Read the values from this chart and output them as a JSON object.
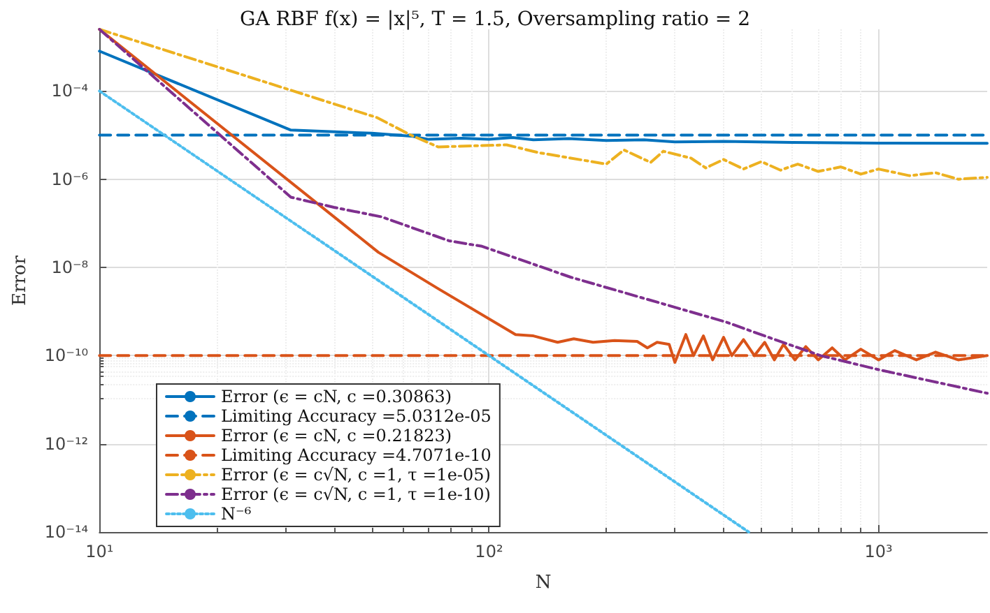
{
  "chart_data": {
    "type": "line",
    "title": "GA RBF f(x) = |x|⁵, T = 1.5, Oversampling ratio = 2",
    "xlabel": "N",
    "ylabel": "Error",
    "log": "xy",
    "grid": true,
    "legend": "bottom left",
    "marker": "none",
    "xlim": [
      10,
      1900
    ],
    "ylim": [
      1e-14,
      0.0025
    ],
    "xticks": [
      {
        "value": 10,
        "label": "10¹"
      },
      {
        "value": 100,
        "label": "10²"
      },
      {
        "value": 1000,
        "label": "10³"
      }
    ],
    "yticks": [
      {
        "value": 1e-14,
        "label": "10⁻¹⁴"
      },
      {
        "value": 1e-12,
        "label": "10⁻¹²"
      },
      {
        "value": 1e-10,
        "label": "10⁻¹⁰"
      },
      {
        "value": 1e-08,
        "label": "10⁻⁸"
      },
      {
        "value": 1e-06,
        "label": "10⁻⁶"
      },
      {
        "value": 0.0001,
        "label": "10⁻⁴"
      }
    ],
    "series": [
      {
        "name": "Error (ϵ = cN, c =0.30863)",
        "color": "#0072bd",
        "line_style": "solid",
        "x": [
          10,
          31,
          50,
          63,
          70,
          85,
          100,
          115,
          130,
          160,
          200,
          250,
          300,
          400,
          600,
          1000,
          1900
        ],
        "values": [
          0.0008,
          1.3e-05,
          1.1e-05,
          9.5e-06,
          8e-06,
          8.5e-06,
          8e-06,
          8.8e-06,
          7.8e-06,
          8.3e-06,
          7.5e-06,
          7.8e-06,
          7e-06,
          7.2e-06,
          6.8e-06,
          6.6e-06,
          6.5e-06
        ]
      },
      {
        "name": "Limiting Accuracy =5.0312e-05",
        "color": "#0072bd",
        "line_style": "dashed",
        "x": [
          10,
          1900
        ],
        "values": [
          1e-05,
          1e-05
        ]
      },
      {
        "name": "Error (ϵ = cN, c =0.21823)",
        "color": "#d95319",
        "line_style": "solid",
        "x": [
          10,
          52,
          74,
          117,
          130,
          150,
          165,
          185,
          210,
          240,
          255,
          270,
          290,
          300,
          320,
          335,
          355,
          375,
          400,
          420,
          450,
          480,
          510,
          540,
          570,
          610,
          650,
          700,
          760,
          820,
          900,
          1000,
          1100,
          1250,
          1400,
          1600,
          1900
        ],
        "values": [
          0.0025,
          2.2e-08,
          3.3e-09,
          3e-10,
          2.8e-10,
          2e-10,
          2.4e-10,
          2e-10,
          2.2e-10,
          2.1e-10,
          1.5e-10,
          2e-10,
          1.8e-10,
          7e-11,
          3e-10,
          1e-10,
          2.8e-10,
          8e-11,
          2.6e-10,
          1e-10,
          2.3e-10,
          1e-10,
          2e-10,
          8e-11,
          1.8e-10,
          8e-11,
          1.6e-10,
          8e-11,
          1.5e-10,
          8e-11,
          1.4e-10,
          8e-11,
          1.3e-10,
          8e-11,
          1.2e-10,
          8e-11,
          1e-10
        ]
      },
      {
        "name": "Limiting Accuracy =4.7071e-10",
        "color": "#d95319",
        "line_style": "dashed",
        "x": [
          10,
          1900
        ],
        "values": [
          1e-10,
          1e-10
        ]
      },
      {
        "name": "Error (ϵ = c√N, c =1, τ =1e-05)",
        "color": "#edb120",
        "line_style": "dashdot",
        "x": [
          10,
          51.5,
          63,
          74,
          111,
          134,
          200,
          222,
          260,
          280,
          330,
          360,
          400,
          450,
          500,
          560,
          620,
          700,
          800,
          900,
          1000,
          1200,
          1400,
          1600,
          1900
        ],
        "values": [
          0.0025,
          2.5e-05,
          1e-05,
          5.4e-06,
          6e-06,
          4e-06,
          2.2e-06,
          4.6e-06,
          2.4e-06,
          4.3e-06,
          3e-06,
          1.8e-06,
          2.8e-06,
          1.7e-06,
          2.5e-06,
          1.6e-06,
          2.2e-06,
          1.5e-06,
          1.9e-06,
          1.3e-06,
          1.7e-06,
          1.2e-06,
          1.4e-06,
          1e-06,
          1.1e-06
        ]
      },
      {
        "name": "Error (ϵ = c√N, c =1, τ =1e-10)",
        "color": "#7e2f8e",
        "line_style": "dashdot",
        "x": [
          10,
          31,
          40,
          53,
          79,
          96,
          162,
          405,
          550,
          710,
          1000,
          1900
        ],
        "values": [
          0.0025,
          3.9e-07,
          2.3e-07,
          1.4e-07,
          4e-08,
          3e-08,
          6e-09,
          5.8e-10,
          2.2e-10,
          1e-10,
          4.8e-11,
          1.4e-11
        ]
      },
      {
        "name": "N⁻⁶",
        "color": "#4dbeee",
        "line_style": "dotted",
        "x": [
          10,
          100,
          464
        ],
        "values": [
          0.0001,
          1e-10,
          1e-14
        ]
      }
    ]
  }
}
